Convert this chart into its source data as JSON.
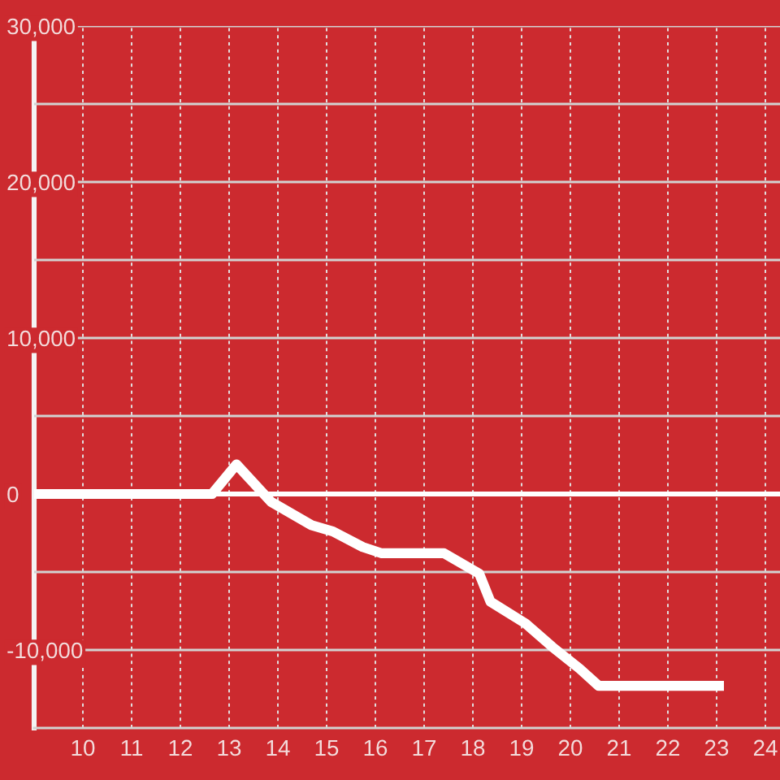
{
  "chart_data": {
    "type": "line",
    "x": [
      9,
      12.65,
      13.15,
      13.86,
      14.69,
      15.13,
      15.74,
      16.13,
      17.41,
      18.13,
      18.36,
      19.08,
      19.63,
      20.19,
      20.58,
      23.15
    ],
    "series": [
      {
        "color": "#ffffff",
        "values": [
          0,
          0,
          1900,
          -500,
          -2000,
          -2400,
          -3400,
          -3800,
          -3800,
          -5100,
          -6900,
          -8300,
          -9800,
          -11200,
          -12300,
          -12300
        ]
      }
    ],
    "xlim": [
      9,
      24.3
    ],
    "xticks": [
      10,
      11,
      12,
      13,
      14,
      15,
      16,
      17,
      18,
      19,
      20,
      21,
      22,
      23,
      24
    ],
    "ylim": [
      -15000,
      30000
    ],
    "yticks": [
      {
        "value": -10000,
        "label": "-10,000"
      },
      {
        "value": -5000,
        "label": null
      },
      0,
      {
        "value": 5000,
        "label": null
      },
      {
        "value": 10000,
        "label": "10,000"
      },
      {
        "value": 15000,
        "label": null
      },
      {
        "value": 20000,
        "label": "20,000"
      },
      {
        "value": 25000,
        "label": null
      },
      {
        "value": 30000,
        "label": "30,000"
      }
    ],
    "ref_lines": [
      {
        "axis": "y",
        "value": 0,
        "color": "#ffffff"
      }
    ],
    "grid": true
  }
}
